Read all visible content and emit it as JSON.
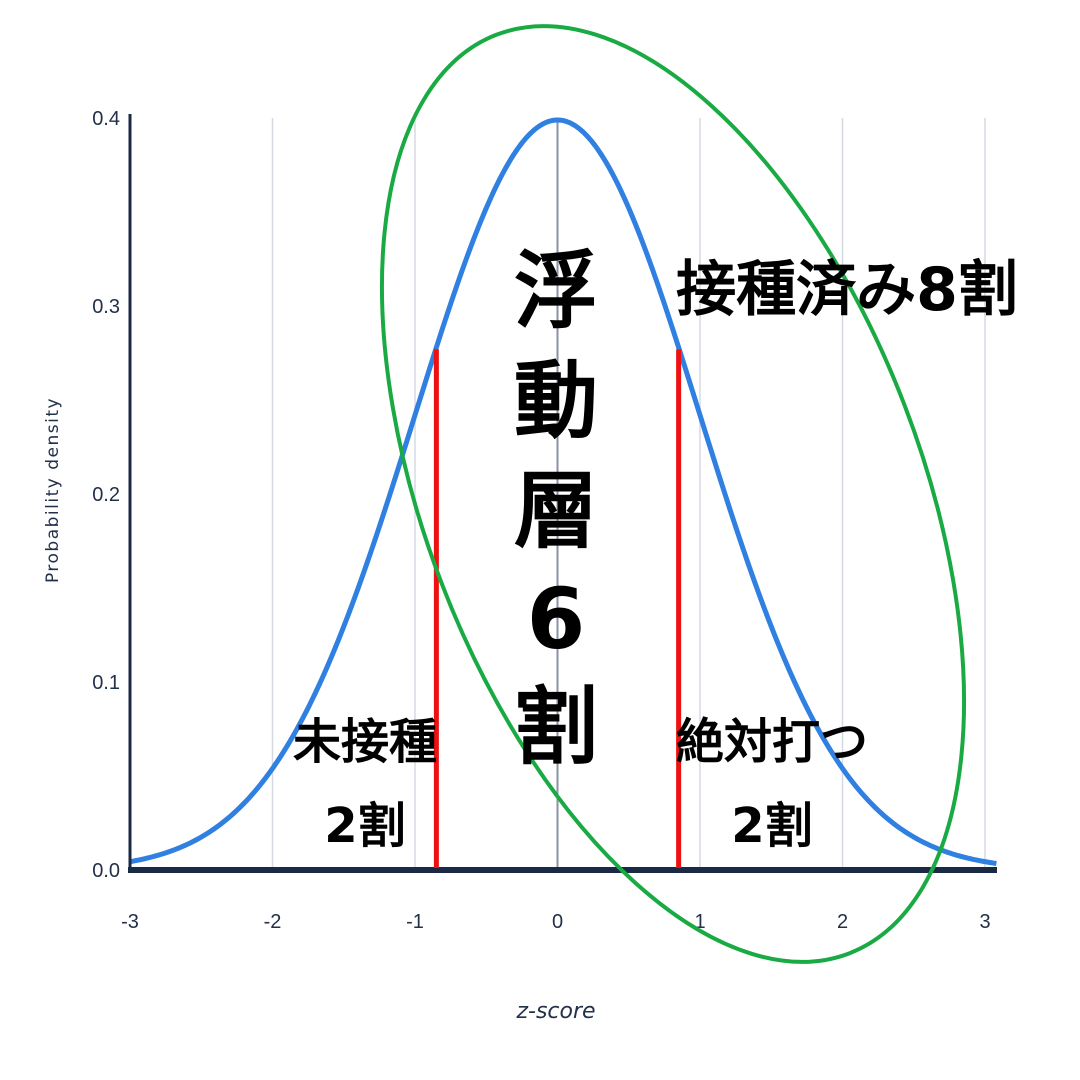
{
  "chart_data": {
    "type": "line",
    "title": "",
    "xlabel": "z-score",
    "ylabel": "Probability density",
    "xlim": [
      -3,
      3
    ],
    "ylim": [
      0,
      0.4
    ],
    "grid": "vertical",
    "x_ticks": [
      "-3",
      "-2",
      "-1",
      "0",
      "1",
      "2",
      "3"
    ],
    "y_ticks": [
      "0.0",
      "0.1",
      "0.2",
      "0.3",
      "0.4"
    ],
    "series": [
      {
        "function": "standard-normal-pdf",
        "color": "#2f80e0"
      }
    ],
    "markers": [
      {
        "x": -0.85,
        "color": "#ee1111"
      },
      {
        "x": 0.85,
        "color": "#ee1111"
      }
    ],
    "ellipse_color": "#1aaa44",
    "annotations": {
      "left_line1": "未接種",
      "left_line2": "2割",
      "center_chars": [
        "浮",
        "動",
        "層",
        "6",
        "割"
      ],
      "right_line1": "絶対打つ",
      "right_line2": "2割",
      "top_right": "接種済み8割"
    }
  }
}
